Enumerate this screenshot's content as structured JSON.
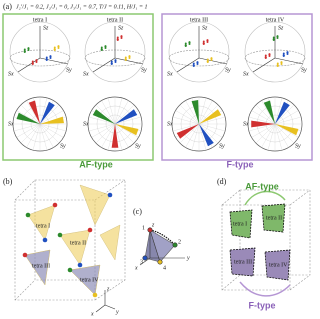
{
  "panel_a": {
    "label": "(a)",
    "parameters": "J₂′/J₁ = 0.2, J₂/J₁ = 0, J₃/J₁ = 0.7, T/J = 0.11, H/J₁ = 1",
    "tetra": [
      "tetra I",
      "tetra II",
      "tetra III",
      "tetra IV"
    ],
    "axes": [
      "Sx",
      "Sy",
      "Sz"
    ],
    "groups": [
      "AF-type",
      "F-type"
    ]
  },
  "panel_b": {
    "label": "(b)",
    "tetra": [
      "tetra I",
      "tetra II",
      "tetra III",
      "tetra IV"
    ],
    "axes": [
      "x",
      "y",
      "z"
    ]
  },
  "panel_c": {
    "label": "(c)",
    "sites": [
      "1",
      "2",
      "3",
      "4"
    ],
    "axes": [
      "x",
      "y",
      "z"
    ]
  },
  "panel_d": {
    "label": "(d)",
    "tetra": [
      "tetra I",
      "tetra II",
      "tetra III",
      "tetra IV"
    ],
    "links": [
      "AF-type",
      "F-type"
    ]
  }
}
